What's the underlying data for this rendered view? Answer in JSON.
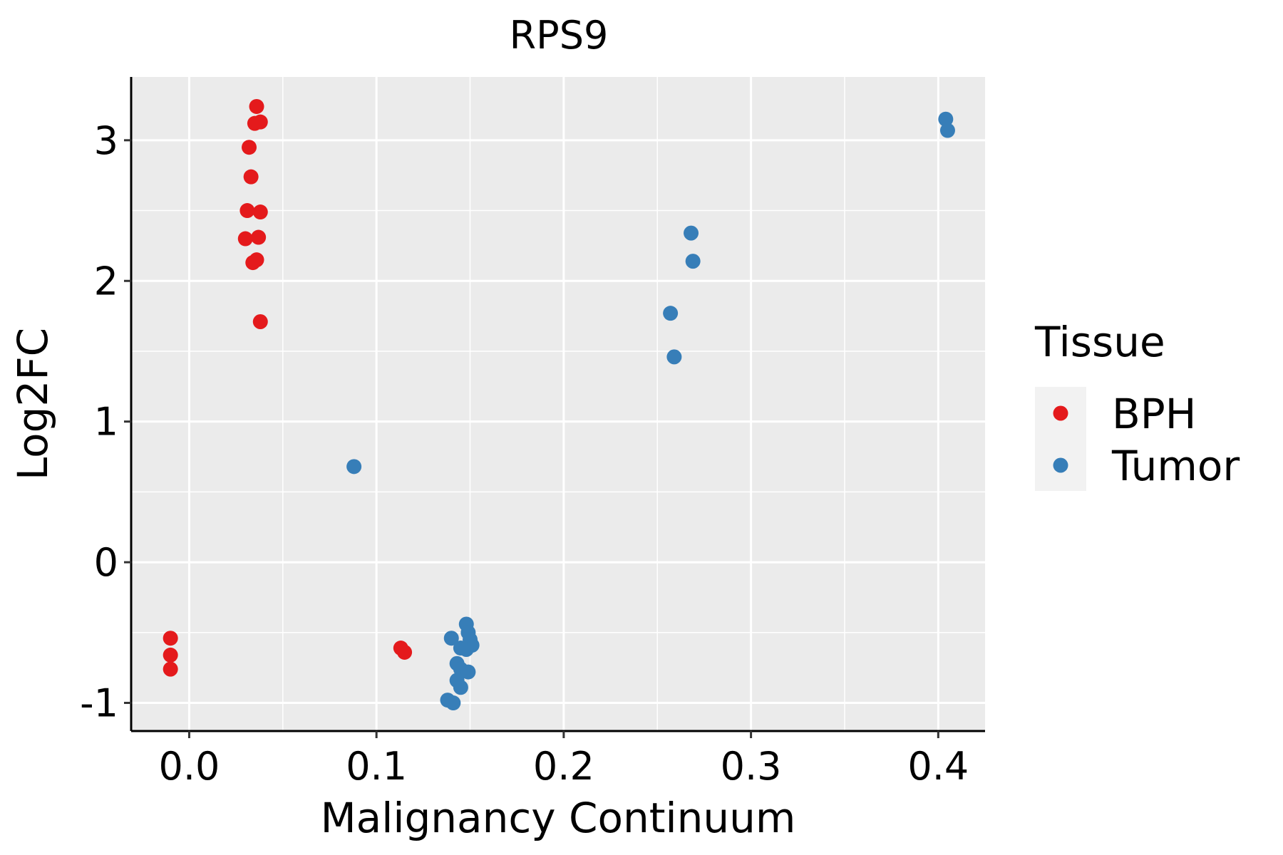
{
  "chart_data": {
    "type": "scatter",
    "title": "RPS9",
    "xlabel": "Malignancy Continuum",
    "ylabel": "Log2FC",
    "xlim": [
      -0.031,
      0.425
    ],
    "ylim": [
      -1.2,
      3.45
    ],
    "x_ticks": [
      0.0,
      0.1,
      0.2,
      0.3,
      0.4
    ],
    "x_tick_labels": [
      "0.0",
      "0.1",
      "0.2",
      "0.3",
      "0.4"
    ],
    "x_minor": [
      0.05,
      0.15,
      0.25,
      0.35
    ],
    "y_ticks": [
      -1,
      0,
      1,
      2,
      3
    ],
    "y_tick_labels": [
      "-1",
      "0",
      "1",
      "2",
      "3"
    ],
    "y_minor": [
      -0.5,
      0.5,
      1.5,
      2.5
    ],
    "grid": true,
    "legend": {
      "title": "Tissue",
      "position": "right"
    },
    "series": [
      {
        "name": "BPH",
        "color": "#E41A1C",
        "points": [
          {
            "x": -0.01,
            "y": -0.54
          },
          {
            "x": -0.01,
            "y": -0.66
          },
          {
            "x": -0.01,
            "y": -0.76
          },
          {
            "x": 0.036,
            "y": 3.24
          },
          {
            "x": 0.035,
            "y": 3.12
          },
          {
            "x": 0.038,
            "y": 3.13
          },
          {
            "x": 0.032,
            "y": 2.95
          },
          {
            "x": 0.033,
            "y": 2.74
          },
          {
            "x": 0.031,
            "y": 2.5
          },
          {
            "x": 0.038,
            "y": 2.49
          },
          {
            "x": 0.03,
            "y": 2.3
          },
          {
            "x": 0.037,
            "y": 2.31
          },
          {
            "x": 0.034,
            "y": 2.13
          },
          {
            "x": 0.036,
            "y": 2.15
          },
          {
            "x": 0.038,
            "y": 1.71
          },
          {
            "x": 0.113,
            "y": -0.61
          },
          {
            "x": 0.115,
            "y": -0.64
          }
        ]
      },
      {
        "name": "Tumor",
        "color": "#377EB8",
        "points": [
          {
            "x": 0.088,
            "y": 0.68
          },
          {
            "x": 0.14,
            "y": -0.54
          },
          {
            "x": 0.148,
            "y": -0.44
          },
          {
            "x": 0.149,
            "y": -0.5
          },
          {
            "x": 0.15,
            "y": -0.55
          },
          {
            "x": 0.151,
            "y": -0.59
          },
          {
            "x": 0.148,
            "y": -0.62
          },
          {
            "x": 0.145,
            "y": -0.61
          },
          {
            "x": 0.143,
            "y": -0.72
          },
          {
            "x": 0.145,
            "y": -0.76
          },
          {
            "x": 0.149,
            "y": -0.78
          },
          {
            "x": 0.143,
            "y": -0.84
          },
          {
            "x": 0.145,
            "y": -0.89
          },
          {
            "x": 0.138,
            "y": -0.98
          },
          {
            "x": 0.141,
            "y": -1.0
          },
          {
            "x": 0.257,
            "y": 1.77
          },
          {
            "x": 0.259,
            "y": 1.46
          },
          {
            "x": 0.268,
            "y": 2.34
          },
          {
            "x": 0.269,
            "y": 2.14
          },
          {
            "x": 0.404,
            "y": 3.15
          },
          {
            "x": 0.405,
            "y": 3.07
          }
        ]
      }
    ]
  }
}
